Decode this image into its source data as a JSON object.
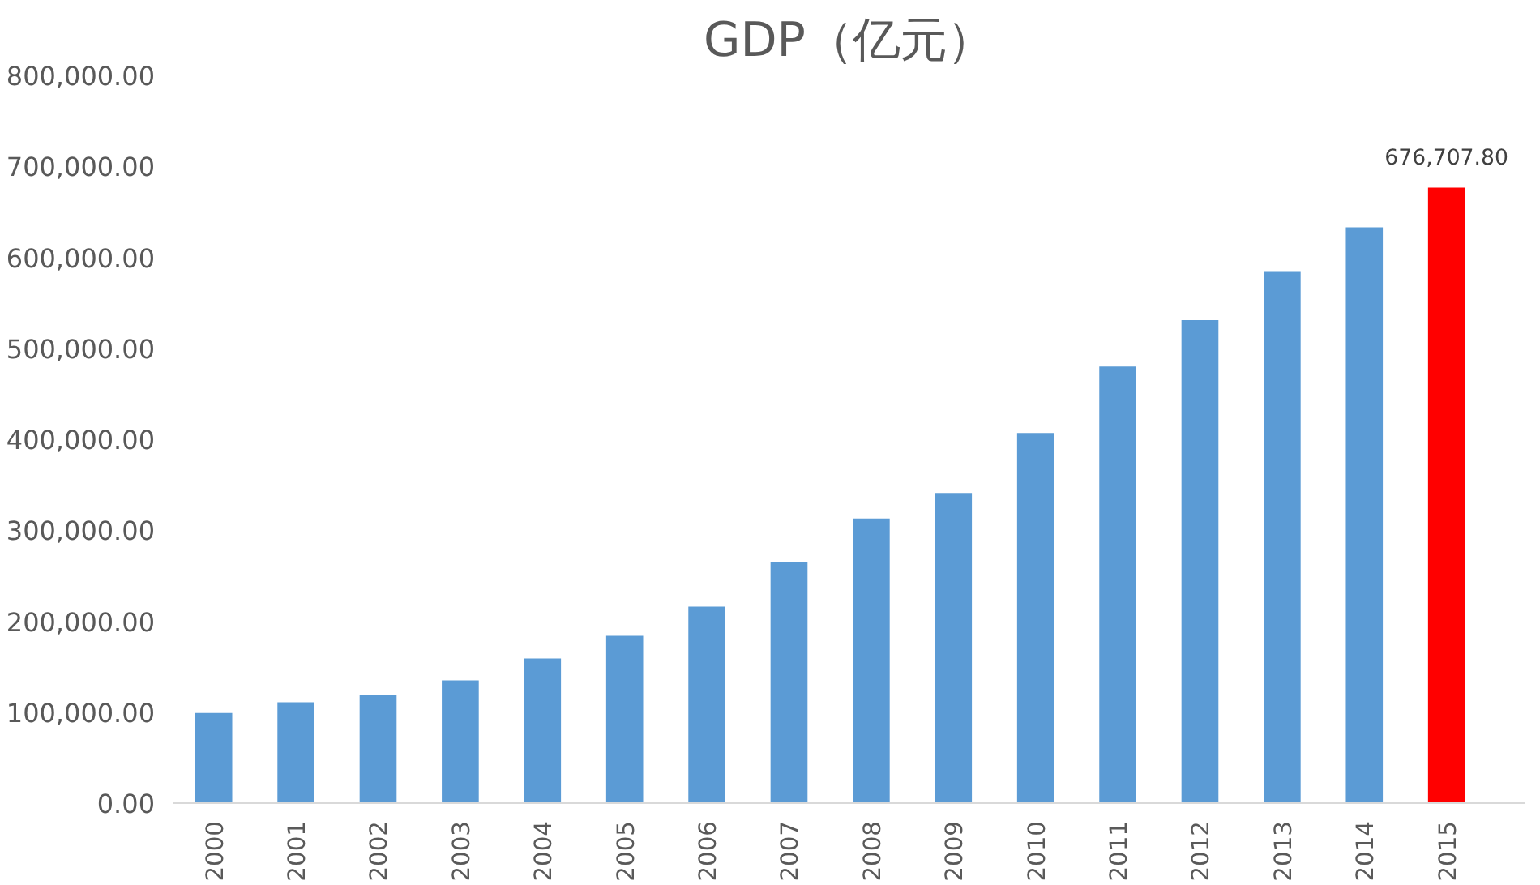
{
  "chart_data": {
    "type": "bar",
    "title": "GDP（亿元）",
    "categories": [
      "2000",
      "2001",
      "2002",
      "2003",
      "2004",
      "2005",
      "2006",
      "2007",
      "2008",
      "2009",
      "2010",
      "2011",
      "2012",
      "2013",
      "2014",
      "2015"
    ],
    "values": [
      99000,
      111000,
      119000,
      135000,
      159000,
      184000,
      216000,
      265000,
      313000,
      341000,
      407000,
      480000,
      531000,
      584000,
      633000,
      676707.8
    ],
    "colors": [
      "#5b9bd5",
      "#5b9bd5",
      "#5b9bd5",
      "#5b9bd5",
      "#5b9bd5",
      "#5b9bd5",
      "#5b9bd5",
      "#5b9bd5",
      "#5b9bd5",
      "#5b9bd5",
      "#5b9bd5",
      "#5b9bd5",
      "#5b9bd5",
      "#5b9bd5",
      "#5b9bd5",
      "#ff0000"
    ],
    "value_labels": [
      null,
      null,
      null,
      null,
      null,
      null,
      null,
      null,
      null,
      null,
      null,
      null,
      null,
      null,
      null,
      "676,707.80"
    ],
    "ylim": [
      0,
      800000
    ],
    "yticks": [
      {
        "value": 0,
        "label": "0.00"
      },
      {
        "value": 100000,
        "label": "100,000.00"
      },
      {
        "value": 200000,
        "label": "200,000.00"
      },
      {
        "value": 300000,
        "label": "300,000.00"
      },
      {
        "value": 400000,
        "label": "400,000.00"
      },
      {
        "value": 500000,
        "label": "500,000.00"
      },
      {
        "value": 600000,
        "label": "600,000.00"
      },
      {
        "value": 700000,
        "label": "700,000.00"
      },
      {
        "value": 800000,
        "label": "800,000.00"
      }
    ],
    "grid": false
  }
}
